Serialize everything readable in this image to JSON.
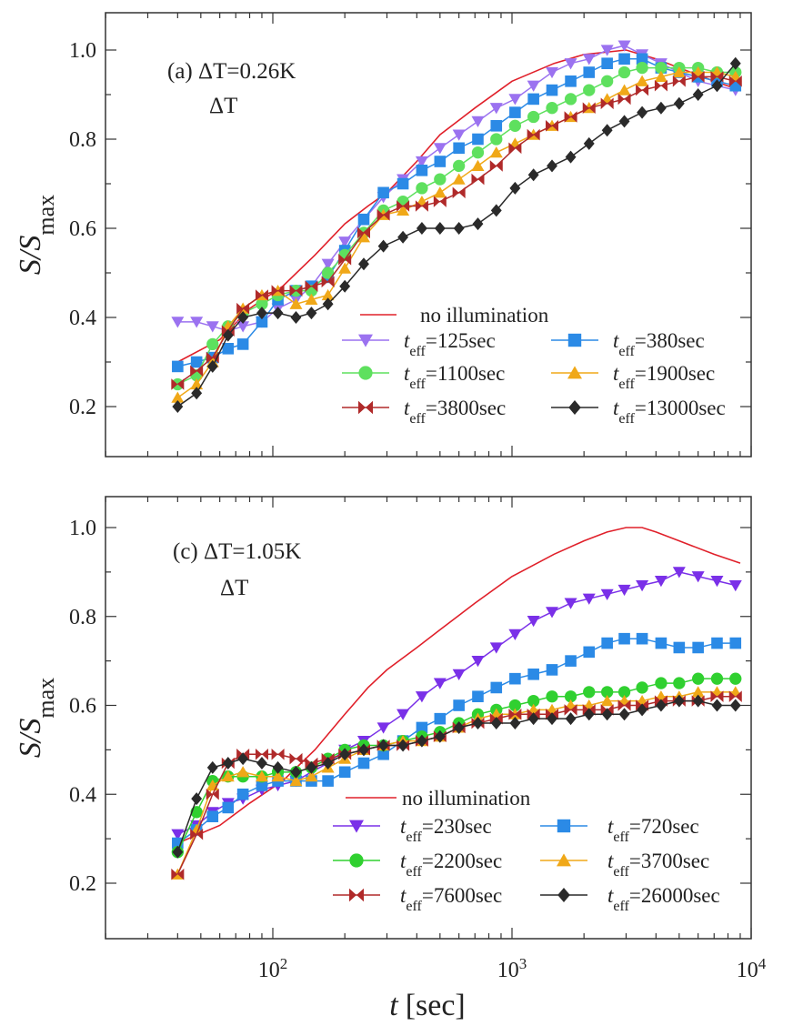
{
  "figure": {
    "shared_xlabel_var": "t",
    "shared_xlabel_unit": "[sec]",
    "x_tick_labels": [
      {
        "base": "10",
        "exp": "2",
        "value": 100
      },
      {
        "base": "10",
        "exp": "3",
        "value": 1000
      },
      {
        "base": "10",
        "exp": "4",
        "value": 10000
      }
    ],
    "y_tick_labels": [
      "0.2",
      "0.4",
      "0.6",
      "0.8",
      "1.0"
    ],
    "ylabel_main": "S/S",
    "ylabel_sub": "max"
  },
  "colors": {
    "no_illumination": "#e0202a",
    "purple": "#9b72f0",
    "blue": "#2b8ae6",
    "green": "#5ee05e",
    "orange": "#f0a818",
    "darkred": "#b02a2a",
    "black": "#2a2a2a",
    "purple_c": "#7a30e8"
  },
  "chart_data": [
    {
      "type": "line",
      "panel": "a",
      "annotation_line1": "(a) ΔT=0.26K",
      "annotation_line2": "ΔT",
      "xscale": "log",
      "xlim": [
        20,
        10000
      ],
      "ylim": [
        0.1,
        1.05
      ],
      "xlabel": "t [sec]",
      "ylabel": "S/Smax",
      "legend_title": "no illumination",
      "reference": {
        "name": "no illumination",
        "x": [
          40,
          60,
          80,
          110,
          150,
          200,
          250,
          300,
          400,
          500,
          700,
          1000,
          1500,
          2000,
          3000,
          4000,
          5000,
          7000,
          9000
        ],
        "y": [
          0.3,
          0.35,
          0.42,
          0.47,
          0.54,
          0.61,
          0.65,
          0.68,
          0.75,
          0.81,
          0.87,
          0.93,
          0.97,
          0.99,
          1.0,
          0.98,
          0.96,
          0.93,
          0.91
        ]
      },
      "series": [
        {
          "name": "t_eff=125sec",
          "t_eff": "125sec",
          "marker": "triangle-down",
          "color": "#9b72f0",
          "x": [
            40,
            48,
            56,
            65,
            75,
            90,
            105,
            125,
            145,
            170,
            200,
            240,
            290,
            350,
            420,
            500,
            600,
            720,
            860,
            1030,
            1230,
            1470,
            1760,
            2100,
            2500,
            2950,
            3500,
            4200,
            5000,
            6000,
            7200,
            8600
          ],
          "y": [
            0.39,
            0.39,
            0.38,
            0.37,
            0.38,
            0.39,
            0.42,
            0.44,
            0.47,
            0.52,
            0.57,
            0.62,
            0.67,
            0.71,
            0.75,
            0.78,
            0.81,
            0.84,
            0.87,
            0.89,
            0.92,
            0.95,
            0.97,
            0.98,
            1.0,
            1.01,
            0.99,
            0.97,
            0.95,
            0.93,
            0.92,
            0.91
          ]
        },
        {
          "name": "t_eff=380sec",
          "t_eff": "380sec",
          "marker": "square",
          "color": "#2b8ae6",
          "x": [
            40,
            48,
            56,
            65,
            75,
            90,
            105,
            125,
            145,
            170,
            200,
            240,
            290,
            350,
            420,
            500,
            600,
            720,
            860,
            1030,
            1230,
            1470,
            1760,
            2100,
            2500,
            2950,
            3500,
            4200,
            5000,
            6000,
            7200,
            8600
          ],
          "y": [
            0.29,
            0.3,
            0.31,
            0.33,
            0.34,
            0.39,
            0.44,
            0.46,
            0.47,
            0.49,
            0.55,
            0.62,
            0.68,
            0.7,
            0.73,
            0.75,
            0.78,
            0.8,
            0.83,
            0.86,
            0.89,
            0.91,
            0.93,
            0.95,
            0.97,
            0.98,
            0.98,
            0.96,
            0.95,
            0.94,
            0.93,
            0.92
          ]
        },
        {
          "name": "t_eff=1100sec",
          "t_eff": "1100sec",
          "marker": "circle",
          "color": "#5ee05e",
          "x": [
            40,
            48,
            56,
            65,
            75,
            90,
            105,
            125,
            145,
            170,
            200,
            240,
            290,
            350,
            420,
            500,
            600,
            720,
            860,
            1030,
            1230,
            1470,
            1760,
            2100,
            2500,
            2950,
            3500,
            4200,
            5000,
            6000,
            7200,
            8600
          ],
          "y": [
            0.25,
            0.27,
            0.34,
            0.38,
            0.41,
            0.43,
            0.45,
            0.46,
            0.46,
            0.5,
            0.54,
            0.59,
            0.64,
            0.66,
            0.69,
            0.71,
            0.74,
            0.77,
            0.8,
            0.83,
            0.85,
            0.87,
            0.89,
            0.91,
            0.93,
            0.95,
            0.96,
            0.96,
            0.96,
            0.96,
            0.95,
            0.95
          ]
        },
        {
          "name": "t_eff=1900sec",
          "t_eff": "1900sec",
          "marker": "triangle-up",
          "color": "#f0a818",
          "x": [
            40,
            48,
            56,
            65,
            75,
            90,
            105,
            125,
            145,
            170,
            200,
            240,
            290,
            350,
            420,
            500,
            600,
            720,
            860,
            1030,
            1230,
            1470,
            1760,
            2100,
            2500,
            2950,
            3500,
            4200,
            5000,
            6000,
            7200,
            8600
          ],
          "y": [
            0.22,
            0.25,
            0.3,
            0.38,
            0.42,
            0.45,
            0.46,
            0.43,
            0.44,
            0.45,
            0.51,
            0.58,
            0.63,
            0.64,
            0.66,
            0.68,
            0.71,
            0.74,
            0.77,
            0.79,
            0.81,
            0.83,
            0.85,
            0.87,
            0.89,
            0.91,
            0.93,
            0.94,
            0.95,
            0.95,
            0.95,
            0.94
          ]
        },
        {
          "name": "t_eff=3800sec",
          "t_eff": "3800sec",
          "marker": "bowtie",
          "color": "#b02a2a",
          "x": [
            40,
            48,
            56,
            65,
            75,
            90,
            105,
            125,
            145,
            170,
            200,
            240,
            290,
            350,
            420,
            500,
            600,
            720,
            860,
            1030,
            1230,
            1470,
            1760,
            2100,
            2500,
            2950,
            3500,
            4200,
            5000,
            6000,
            7200,
            8600
          ],
          "y": [
            0.25,
            0.28,
            0.31,
            0.37,
            0.42,
            0.45,
            0.46,
            0.46,
            0.47,
            0.48,
            0.53,
            0.59,
            0.63,
            0.65,
            0.65,
            0.66,
            0.68,
            0.71,
            0.74,
            0.78,
            0.81,
            0.83,
            0.85,
            0.87,
            0.88,
            0.89,
            0.91,
            0.92,
            0.93,
            0.94,
            0.94,
            0.93
          ]
        },
        {
          "name": "t_eff=13000sec",
          "t_eff": "13000sec",
          "marker": "diamond",
          "color": "#2a2a2a",
          "x": [
            40,
            48,
            56,
            65,
            75,
            90,
            105,
            125,
            145,
            170,
            200,
            240,
            290,
            350,
            420,
            500,
            600,
            720,
            860,
            1030,
            1230,
            1470,
            1760,
            2100,
            2500,
            2950,
            3500,
            4200,
            5000,
            6000,
            7200,
            8600
          ],
          "y": [
            0.2,
            0.23,
            0.29,
            0.36,
            0.4,
            0.41,
            0.41,
            0.4,
            0.41,
            0.43,
            0.47,
            0.52,
            0.56,
            0.58,
            0.6,
            0.6,
            0.6,
            0.61,
            0.64,
            0.69,
            0.72,
            0.74,
            0.76,
            0.79,
            0.82,
            0.84,
            0.86,
            0.87,
            0.88,
            0.9,
            0.92,
            0.97
          ]
        }
      ]
    },
    {
      "type": "line",
      "panel": "c",
      "annotation_line1": "(c) ΔT=1.05K",
      "annotation_line2": "ΔT",
      "xscale": "log",
      "xlim": [
        20,
        10000
      ],
      "ylim": [
        0.1,
        1.05
      ],
      "xlabel": "t [sec]",
      "ylabel": "S/Smax",
      "legend_title": "no illumination",
      "reference": {
        "name": "no illumination",
        "x": [
          40,
          60,
          80,
          110,
          150,
          200,
          250,
          300,
          400,
          500,
          700,
          1000,
          1500,
          2000,
          2500,
          3000,
          3500,
          4000,
          5000,
          7000,
          9000
        ],
        "y": [
          0.29,
          0.33,
          0.38,
          0.43,
          0.5,
          0.58,
          0.64,
          0.68,
          0.73,
          0.77,
          0.83,
          0.89,
          0.94,
          0.97,
          0.99,
          1.0,
          1.0,
          0.99,
          0.97,
          0.94,
          0.92
        ]
      },
      "series": [
        {
          "name": "t_eff=230sec",
          "t_eff": "230sec",
          "marker": "triangle-down",
          "color": "#7a30e8",
          "x": [
            40,
            48,
            56,
            65,
            75,
            90,
            105,
            125,
            145,
            170,
            200,
            240,
            290,
            350,
            420,
            500,
            600,
            720,
            860,
            1030,
            1230,
            1470,
            1760,
            2100,
            2500,
            2950,
            3500,
            4200,
            5000,
            6000,
            7200,
            8600
          ],
          "y": [
            0.31,
            0.33,
            0.36,
            0.38,
            0.39,
            0.41,
            0.42,
            0.43,
            0.45,
            0.47,
            0.5,
            0.52,
            0.55,
            0.58,
            0.62,
            0.65,
            0.67,
            0.7,
            0.73,
            0.76,
            0.79,
            0.81,
            0.83,
            0.84,
            0.85,
            0.86,
            0.87,
            0.88,
            0.9,
            0.89,
            0.88,
            0.87
          ]
        },
        {
          "name": "t_eff=720sec",
          "t_eff": "720sec",
          "marker": "square",
          "color": "#2b8ae6",
          "x": [
            40,
            48,
            56,
            65,
            75,
            90,
            105,
            125,
            145,
            170,
            200,
            240,
            290,
            350,
            420,
            500,
            600,
            720,
            860,
            1030,
            1230,
            1470,
            1760,
            2100,
            2500,
            2950,
            3500,
            4200,
            5000,
            6000,
            7200,
            8600
          ],
          "y": [
            0.29,
            0.32,
            0.35,
            0.37,
            0.4,
            0.42,
            0.43,
            0.43,
            0.43,
            0.43,
            0.45,
            0.47,
            0.49,
            0.52,
            0.55,
            0.57,
            0.6,
            0.62,
            0.64,
            0.66,
            0.67,
            0.68,
            0.7,
            0.72,
            0.74,
            0.75,
            0.75,
            0.74,
            0.73,
            0.73,
            0.74,
            0.74
          ]
        },
        {
          "name": "t_eff=2200sec",
          "t_eff": "2200sec",
          "marker": "circle",
          "color": "#30d030",
          "x": [
            40,
            48,
            56,
            65,
            75,
            90,
            105,
            125,
            145,
            170,
            200,
            240,
            290,
            350,
            420,
            500,
            600,
            720,
            860,
            1030,
            1230,
            1470,
            1760,
            2100,
            2500,
            2950,
            3500,
            4200,
            5000,
            6000,
            7200,
            8600
          ],
          "y": [
            0.27,
            0.36,
            0.43,
            0.44,
            0.44,
            0.44,
            0.45,
            0.45,
            0.46,
            0.48,
            0.5,
            0.51,
            0.51,
            0.52,
            0.53,
            0.54,
            0.56,
            0.58,
            0.59,
            0.6,
            0.61,
            0.62,
            0.62,
            0.63,
            0.63,
            0.63,
            0.64,
            0.65,
            0.65,
            0.66,
            0.66,
            0.66
          ]
        },
        {
          "name": "t_eff=3700sec",
          "t_eff": "3700sec",
          "marker": "triangle-up",
          "color": "#f0a818",
          "x": [
            40,
            48,
            56,
            65,
            75,
            90,
            105,
            125,
            145,
            170,
            200,
            240,
            290,
            350,
            420,
            500,
            600,
            720,
            860,
            1030,
            1230,
            1470,
            1760,
            2100,
            2500,
            2950,
            3500,
            4200,
            5000,
            6000,
            7200,
            8600
          ],
          "y": [
            0.22,
            0.32,
            0.42,
            0.44,
            0.45,
            0.44,
            0.44,
            0.43,
            0.44,
            0.46,
            0.48,
            0.5,
            0.51,
            0.52,
            0.52,
            0.53,
            0.55,
            0.57,
            0.58,
            0.58,
            0.59,
            0.59,
            0.6,
            0.6,
            0.61,
            0.61,
            0.61,
            0.62,
            0.62,
            0.63,
            0.63,
            0.63
          ]
        },
        {
          "name": "t_eff=7600sec",
          "t_eff": "7600sec",
          "marker": "bowtie",
          "color": "#b02a2a",
          "x": [
            40,
            48,
            56,
            65,
            75,
            90,
            105,
            125,
            145,
            170,
            200,
            240,
            290,
            350,
            420,
            500,
            600,
            720,
            860,
            1030,
            1230,
            1470,
            1760,
            2100,
            2500,
            2950,
            3500,
            4200,
            5000,
            6000,
            7200,
            8600
          ],
          "y": [
            0.22,
            0.31,
            0.4,
            0.47,
            0.49,
            0.49,
            0.49,
            0.48,
            0.47,
            0.48,
            0.49,
            0.5,
            0.51,
            0.51,
            0.52,
            0.53,
            0.55,
            0.56,
            0.57,
            0.58,
            0.58,
            0.58,
            0.59,
            0.59,
            0.59,
            0.6,
            0.6,
            0.61,
            0.61,
            0.61,
            0.62,
            0.62
          ]
        },
        {
          "name": "t_eff=26000sec",
          "t_eff": "26000sec",
          "marker": "diamond",
          "color": "#2a2a2a",
          "x": [
            40,
            48,
            56,
            65,
            75,
            90,
            105,
            125,
            145,
            170,
            200,
            240,
            290,
            350,
            420,
            500,
            600,
            720,
            860,
            1030,
            1230,
            1470,
            1760,
            2100,
            2500,
            2950,
            3500,
            4200,
            5000,
            6000,
            7200,
            8600
          ],
          "y": [
            0.27,
            0.39,
            0.46,
            0.47,
            0.48,
            0.47,
            0.46,
            0.45,
            0.46,
            0.47,
            0.49,
            0.5,
            0.51,
            0.51,
            0.52,
            0.53,
            0.55,
            0.56,
            0.56,
            0.56,
            0.57,
            0.57,
            0.57,
            0.58,
            0.58,
            0.58,
            0.59,
            0.6,
            0.61,
            0.61,
            0.6,
            0.6
          ]
        }
      ]
    }
  ]
}
